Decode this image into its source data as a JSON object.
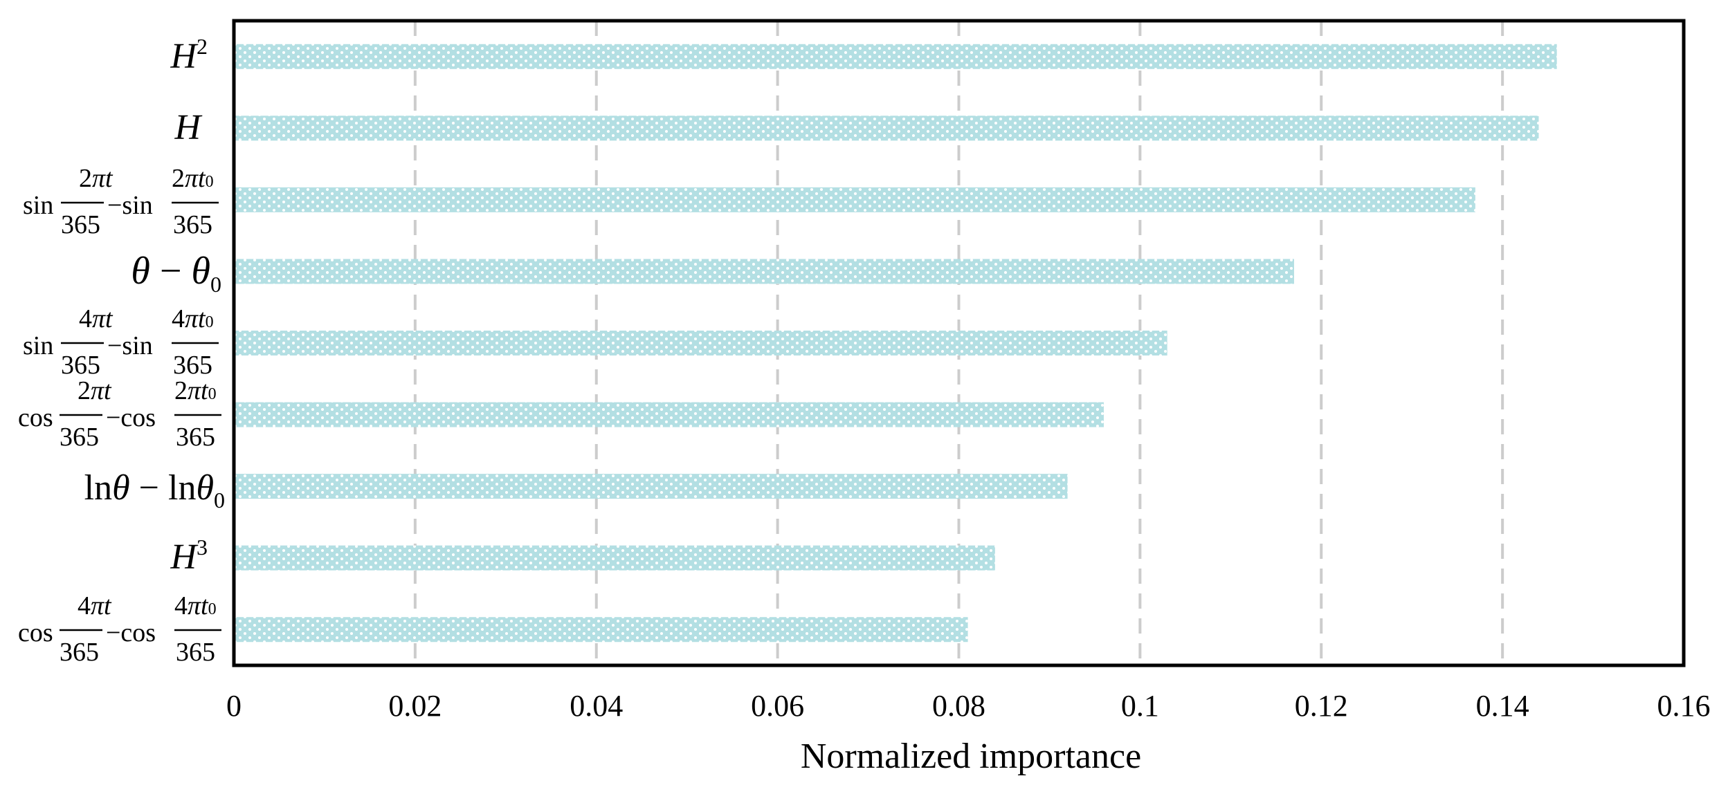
{
  "chart_data": {
    "type": "bar",
    "orientation": "horizontal",
    "categories": [
      "H²",
      "H",
      "sin(2πt/365) − sin(2πt₀/365)",
      "θ − θ₀",
      "sin(4πt/365) − sin(4πt₀/365)",
      "cos(2πt/365) − cos(2πt₀/365)",
      "ln θ − ln θ₀",
      "H³",
      "cos(4πt/365) − cos(4πt₀/365)"
    ],
    "values": [
      0.146,
      0.144,
      0.137,
      0.117,
      0.103,
      0.096,
      0.092,
      0.084,
      0.081
    ],
    "title": "",
    "xlabel": "Normalized importance",
    "ylabel": "",
    "xlim": [
      0,
      0.16
    ],
    "xticks": [
      "0",
      "0.02",
      "0.04",
      "0.06",
      "0.08",
      "0.1",
      "0.12",
      "0.14",
      "0.16"
    ],
    "grid": "vertical dashed",
    "bar_color": "#b3dfe3",
    "bar_pattern": "white dots"
  }
}
